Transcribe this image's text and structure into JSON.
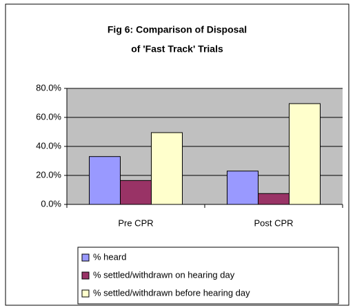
{
  "chart_data": {
    "type": "bar",
    "title": [
      "Fig 6: Comparison of Disposal",
      "of 'Fast Track' Trials"
    ],
    "categories": [
      "Pre CPR",
      "Post CPR"
    ],
    "series": [
      {
        "name": "% heard",
        "color": "#9999ff",
        "values": [
          33,
          23
        ]
      },
      {
        "name": "% settled/withdrawn on hearing day",
        "color": "#993366",
        "values": [
          16.5,
          7.5
        ]
      },
      {
        "name": "% settled/withdrawn before hearing day",
        "color": "#ffffcc",
        "values": [
          49.5,
          69.5
        ]
      }
    ],
    "ylim": [
      0,
      80
    ],
    "yticks": [
      {
        "value": 0,
        "label": "0.0%"
      },
      {
        "value": 20,
        "label": "20.0%"
      },
      {
        "value": 40,
        "label": "40.0%"
      },
      {
        "value": 60,
        "label": "60.0%"
      },
      {
        "value": 80,
        "label": "80.0%"
      }
    ],
    "grid": true,
    "legend": "bottom"
  }
}
